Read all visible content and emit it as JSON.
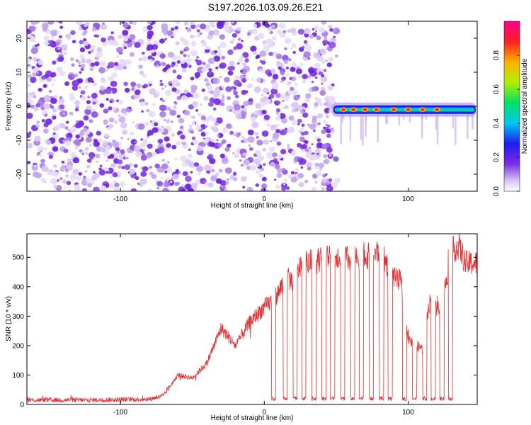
{
  "title": "S197.2026.103.09.26.E21",
  "colors": {
    "snr_line": "#ee2a2a",
    "speckle": "#7a2ee6",
    "background": "#ffffff"
  },
  "chart_data": [
    {
      "type": "heatmap",
      "name": "spectrogram",
      "xlabel": "Height of straight line (km)",
      "ylabel": "Frequency (Hz)",
      "xlim": [
        -165,
        148
      ],
      "ylim": [
        -25,
        25
      ],
      "xticks": [
        -100,
        0,
        100
      ],
      "xtick_labels": [
        "-100",
        "0",
        "100"
      ],
      "yticks": [
        20,
        10,
        0,
        -10,
        -20
      ],
      "ytick_labels": [
        "20",
        "10",
        "0",
        "-10",
        "-20"
      ],
      "noise_region_km": [
        -165,
        48
      ],
      "signal_start_km": 48,
      "signal_frequency_hz": -1,
      "signal_hotspots_km": [
        55,
        62,
        70,
        78,
        90,
        100,
        110,
        120
      ],
      "colorbar": {
        "label": "Normalized spectral amplitude",
        "range": [
          0.0,
          1.0
        ],
        "ticks": [
          0.0,
          0.2,
          0.4,
          0.6,
          0.8
        ],
        "tick_labels": [
          "0.0",
          "0.2",
          "0.4",
          "0.6",
          "0.8"
        ]
      }
    },
    {
      "type": "line",
      "name": "snr",
      "xlabel": "Height of straight line (km)",
      "ylabel": "SNR (10 * v/v)",
      "xlim": [
        -165,
        148
      ],
      "ylim": [
        0,
        580
      ],
      "xticks": [
        -100,
        0,
        100
      ],
      "xtick_labels": [
        "-100",
        "0",
        "100"
      ],
      "yticks": [
        0,
        100,
        200,
        300,
        400,
        500
      ],
      "ytick_labels": [
        "0",
        "100",
        "200",
        "300",
        "400",
        "500"
      ],
      "series": [
        {
          "name": "SNR",
          "x": [
            -165,
            -120,
            -80,
            -70,
            -60,
            -50,
            -40,
            -30,
            -20,
            -10,
            0,
            5,
            10,
            15,
            20,
            25,
            30,
            35,
            40,
            50,
            60,
            70,
            80,
            85,
            90,
            95,
            98,
            100,
            105,
            110,
            115,
            120,
            125,
            130,
            135,
            140,
            148
          ],
          "values": [
            15,
            15,
            18,
            30,
            100,
            90,
            140,
            260,
            200,
            280,
            330,
            350,
            380,
            430,
            420,
            470,
            490,
            480,
            500,
            510,
            490,
            500,
            520,
            480,
            430,
            420,
            300,
            220,
            200,
            190,
            350,
            320,
            380,
            520,
            540,
            480,
            480
          ]
        }
      ],
      "dropouts_km": [
        5,
        13,
        20,
        26,
        33,
        40,
        46,
        53,
        60,
        66,
        73,
        80,
        86,
        96,
        103,
        110,
        116,
        122,
        128
      ],
      "dropout_level": 20
    }
  ]
}
